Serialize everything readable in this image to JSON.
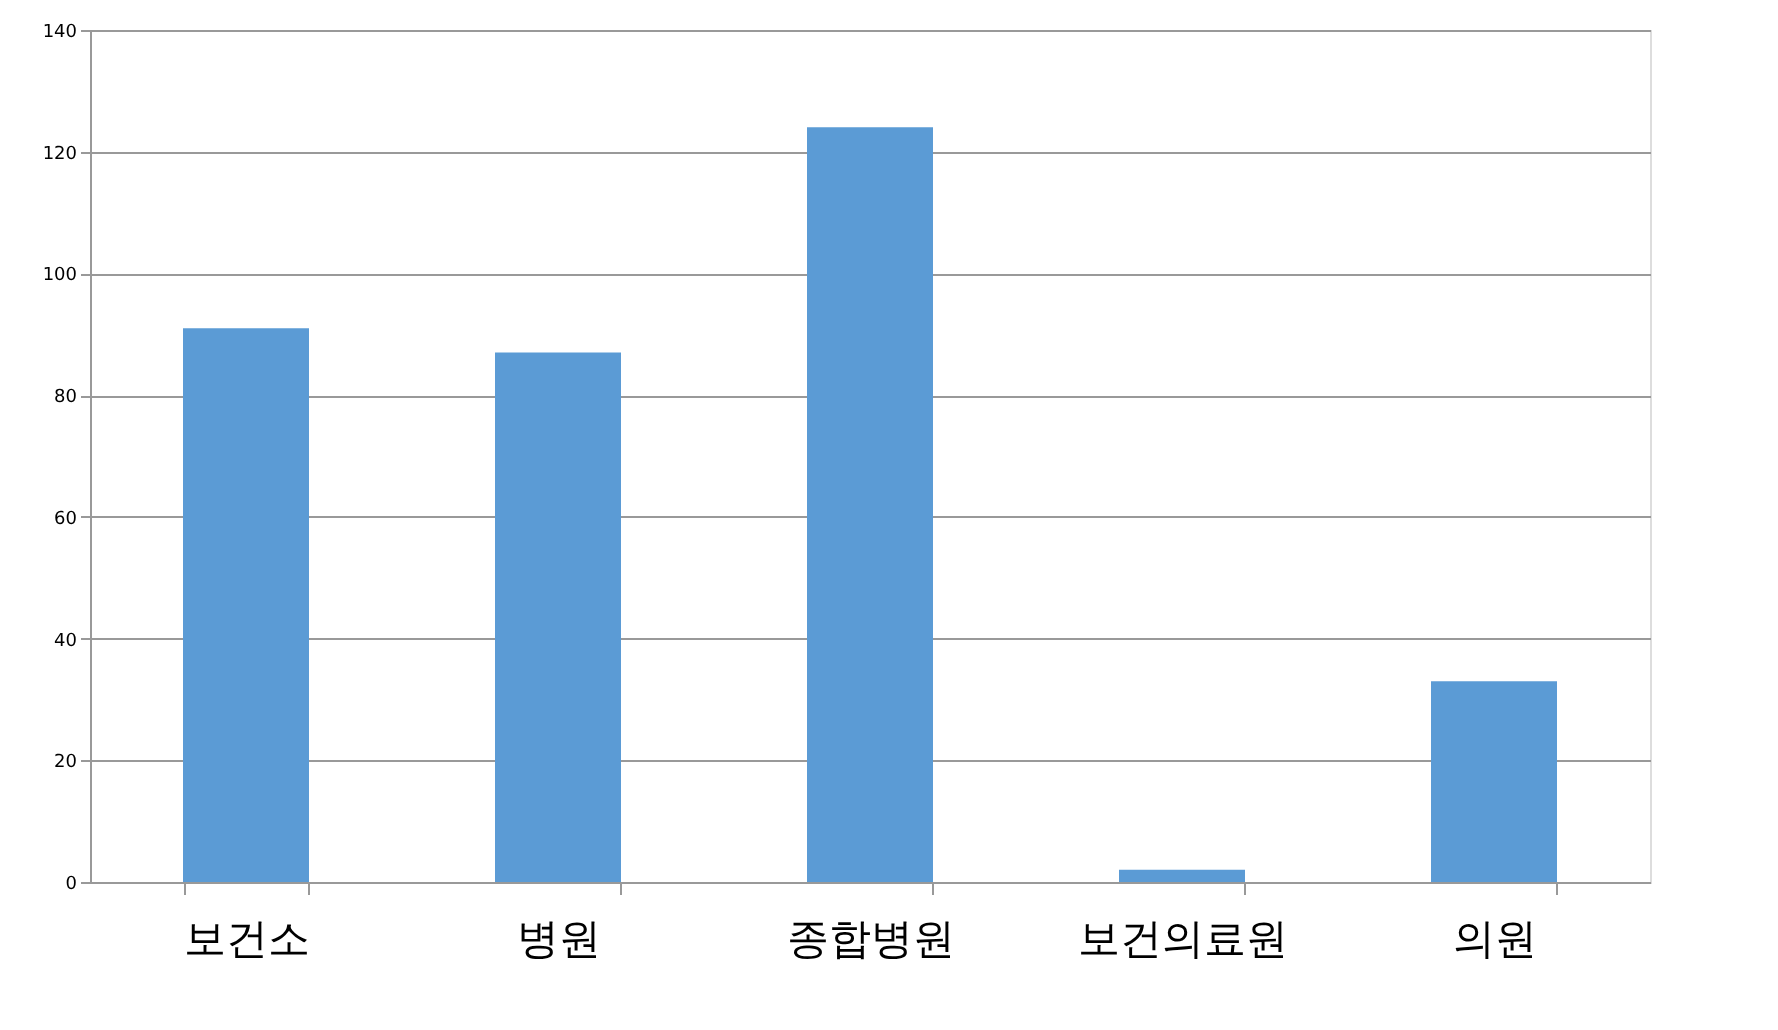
{
  "chart_data": {
    "type": "bar",
    "categories": [
      "보건소",
      "병원",
      "종합병원",
      "보건의료원",
      "의원"
    ],
    "values": [
      91,
      87,
      124,
      2,
      33
    ],
    "color": "#5b9bd5",
    "ylim": [
      0,
      140
    ],
    "yticks": [
      0,
      20,
      40,
      60,
      80,
      100,
      120,
      140
    ],
    "grid": "y"
  }
}
